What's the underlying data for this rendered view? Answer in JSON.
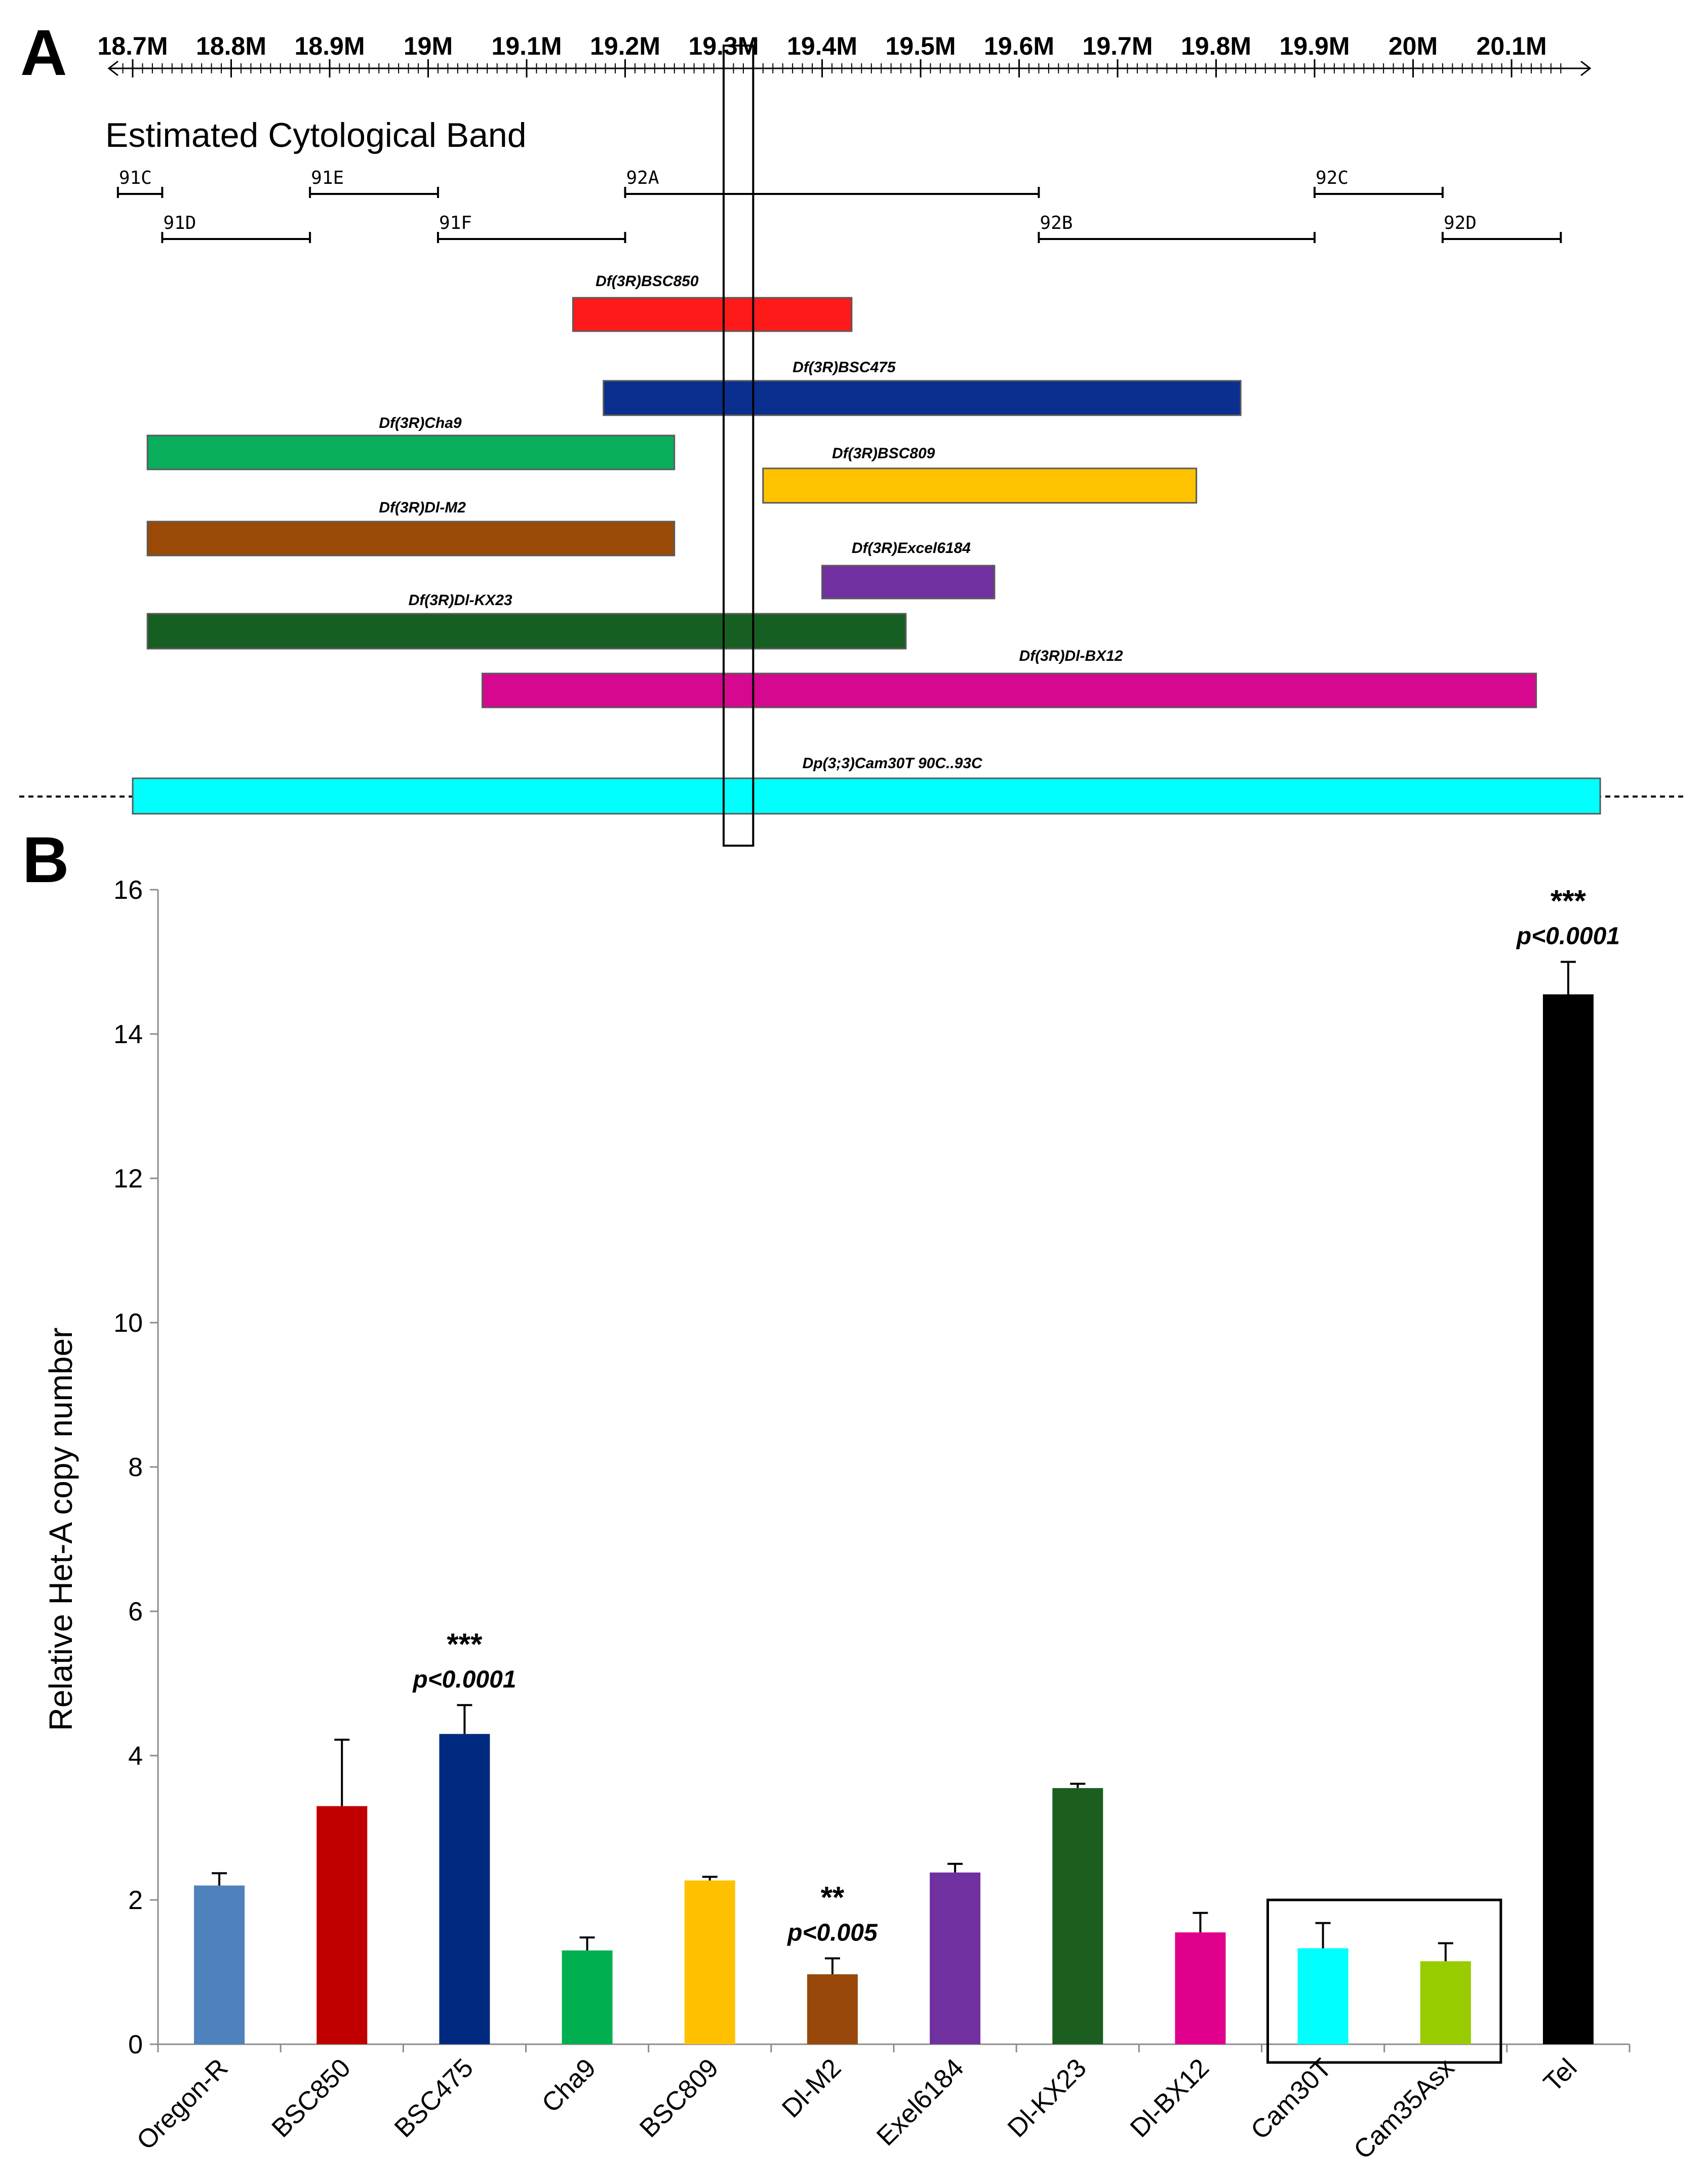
{
  "panel_a_letter": "A",
  "panel_b_letter": "B",
  "genome_axis": {
    "ticks": [
      {
        "label": "18.7M",
        "pos": 18.7
      },
      {
        "label": "18.8M",
        "pos": 18.8
      },
      {
        "label": "18.9M",
        "pos": 18.9
      },
      {
        "label": "19M",
        "pos": 19.0
      },
      {
        "label": "19.1M",
        "pos": 19.1
      },
      {
        "label": "19.2M",
        "pos": 19.2
      },
      {
        "label": "19.3M",
        "pos": 19.3
      },
      {
        "label": "19.4M",
        "pos": 19.4
      },
      {
        "label": "19.5M",
        "pos": 19.5
      },
      {
        "label": "19.6M",
        "pos": 19.6
      },
      {
        "label": "19.7M",
        "pos": 19.7
      },
      {
        "label": "19.8M",
        "pos": 19.8
      },
      {
        "label": "19.9M",
        "pos": 19.9
      },
      {
        "label": "20M",
        "pos": 20.0
      },
      {
        "label": "20.1M",
        "pos": 20.1
      }
    ],
    "range_mb": [
      18.7,
      20.15
    ],
    "highlight_mb": [
      19.3,
      19.33
    ]
  },
  "cytology": {
    "title": "Estimated Cytological Band",
    "bands": [
      {
        "label": "91C",
        "start": 18.685,
        "end": 18.73,
        "row": 0
      },
      {
        "label": "91D",
        "start": 18.73,
        "end": 18.88,
        "row": 1
      },
      {
        "label": "91E",
        "start": 18.88,
        "end": 19.01,
        "row": 0
      },
      {
        "label": "91F",
        "start": 19.01,
        "end": 19.2,
        "row": 1
      },
      {
        "label": "92A",
        "start": 19.2,
        "end": 19.62,
        "row": 0
      },
      {
        "label": "92B",
        "start": 19.62,
        "end": 19.9,
        "row": 1
      },
      {
        "label": "92C",
        "start": 19.9,
        "end": 20.03,
        "row": 0
      },
      {
        "label": "92D",
        "start": 20.03,
        "end": 20.15,
        "row": 1
      }
    ]
  },
  "deletions": [
    {
      "name": "Df(3R)BSC850",
      "start": 19.147,
      "end": 19.43,
      "color": "#ff1a1a",
      "label_at": 19.17
    },
    {
      "name": "Df(3R)BSC475",
      "start": 19.178,
      "end": 19.825,
      "color": "#0a2f8f",
      "label_at": 19.37
    },
    {
      "name": "Df(3R)Cha9",
      "start": 18.715,
      "end": 19.25,
      "color": "#0aad5a",
      "label_at": 18.95
    },
    {
      "name": "Df(3R)BSC809",
      "start": 19.34,
      "end": 19.78,
      "color": "#ffc200",
      "label_at": 19.41
    },
    {
      "name": "Df(3R)Dl-M2",
      "start": 18.715,
      "end": 19.25,
      "color": "#9a4a06",
      "label_at": 18.95
    },
    {
      "name": "Df(3R)Excel6184",
      "start": 19.4,
      "end": 19.575,
      "color": "#7030a0",
      "label_at": 19.43
    },
    {
      "name": "Df(3R)Dl-KX23",
      "start": 18.715,
      "end": 19.485,
      "color": "#175e22",
      "label_at": 18.98
    },
    {
      "name": "Df(3R)Dl-BX12",
      "start": 19.055,
      "end": 20.125,
      "color": "#d5088f",
      "label_at": 19.6
    },
    {
      "name": "Dp(3;3)Cam30T 90C..93C",
      "start": 18.7,
      "end": 20.19,
      "color": "#00ffff",
      "label_at": 19.38
    }
  ],
  "chart_data": {
    "type": "bar",
    "title": "",
    "xlabel": "",
    "ylabel": "Relative Het-A copy number",
    "ylim": [
      0,
      16
    ],
    "yticks": [
      0,
      2,
      4,
      6,
      8,
      10,
      12,
      14,
      16
    ],
    "categories": [
      "Oregon-R",
      "BSC850",
      "BSC475",
      "Cha9",
      "BSC809",
      "Dl-M2",
      "Exel6184",
      "Dl-KX23",
      "Dl-BX12",
      "Cam30T",
      "Cam35Asx",
      "Tel"
    ],
    "values": [
      2.2,
      3.3,
      4.3,
      1.3,
      2.27,
      0.97,
      2.38,
      3.55,
      1.55,
      1.33,
      1.15,
      14.55
    ],
    "errors": [
      0.17,
      0.92,
      0.4,
      0.18,
      0.05,
      0.22,
      0.12,
      0.06,
      0.27,
      0.35,
      0.25,
      0.45
    ],
    "colors": [
      "#4f81bd",
      "#c00000",
      "#002a80",
      "#00b050",
      "#ffc000",
      "#99480c",
      "#7030a0",
      "#1b5e20",
      "#e0008c",
      "#00ffff",
      "#99cc00",
      "#000000"
    ],
    "annotations": [
      {
        "category": "BSC475",
        "stars": "***",
        "p": "p<0.0001"
      },
      {
        "category": "Dl-M2",
        "stars": "**",
        "p": "p<0.005"
      },
      {
        "category": "Tel",
        "stars": "***",
        "p": "p<0.0001"
      }
    ],
    "boxed_categories": [
      "Cam30T",
      "Cam35Asx"
    ]
  }
}
